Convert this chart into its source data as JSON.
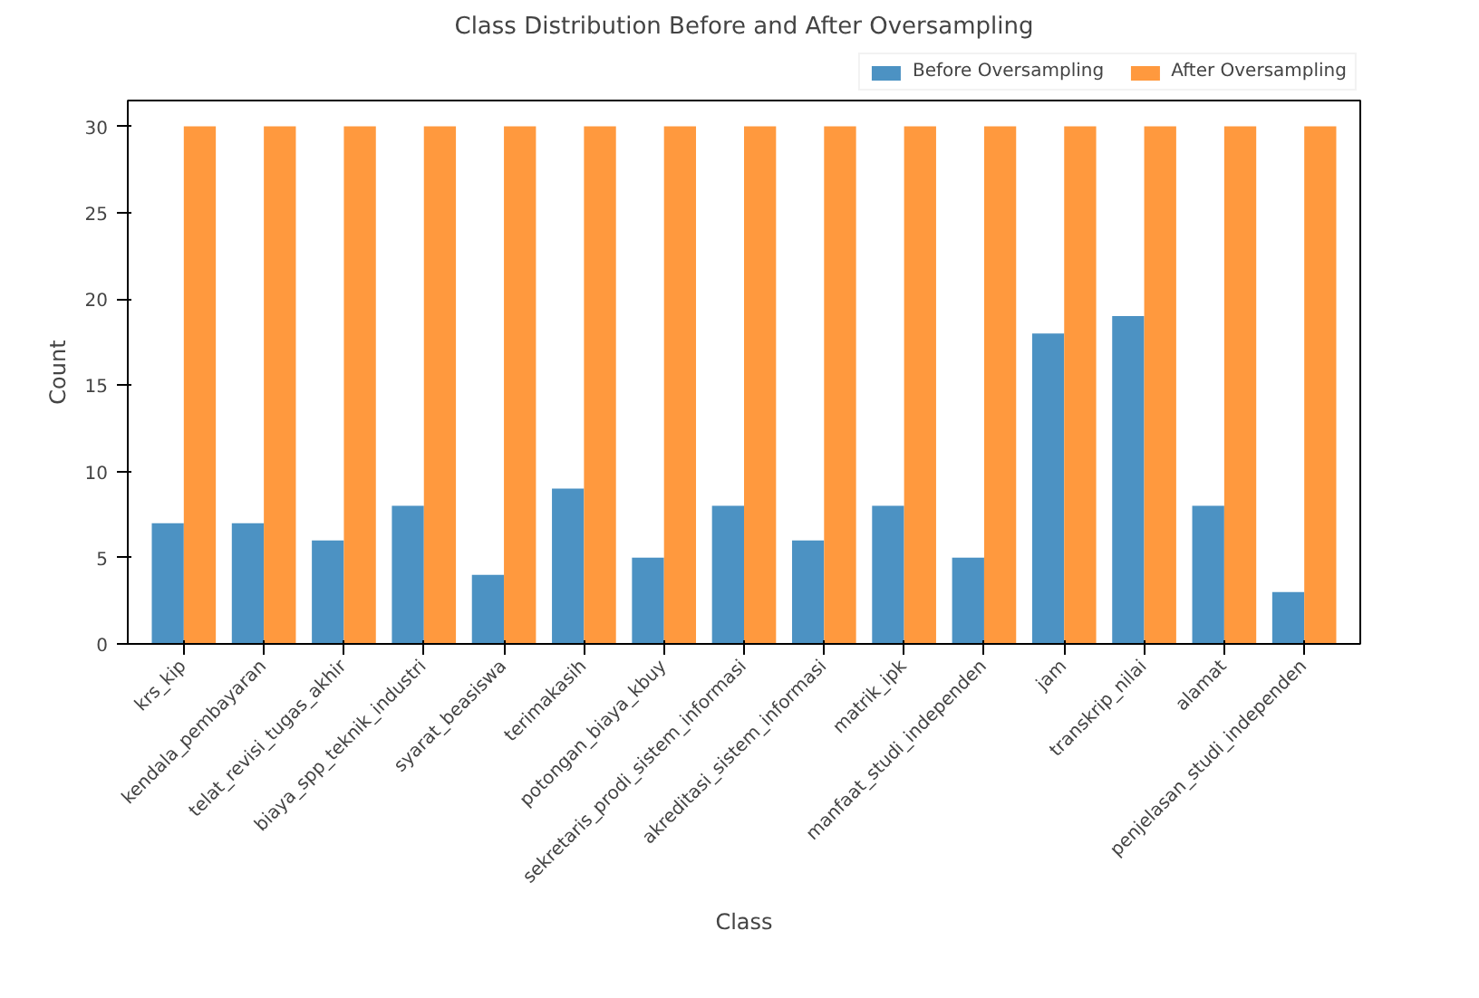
{
  "chart_data": {
    "type": "bar",
    "title": "Class Distribution Before and After Oversampling",
    "xlabel": "Class",
    "ylabel": "Count",
    "categories": [
      "krs_kip",
      "kendala_pembayaran",
      "telat_revisi_tugas_akhir",
      "biaya_spp_teknik_industri",
      "syarat_beasiswa",
      "terimakasih",
      "potongan_biaya_kbuy",
      "sekretaris_prodi_sistem_informasi",
      "akreditasi_sistem_informasi",
      "matrik_ipk",
      "manfaat_studi_independen",
      "jam",
      "transkrip_nilai",
      "alamat",
      "penjelasan_studi_independen"
    ],
    "series": [
      {
        "name": "Before Oversampling",
        "color": "#4c92c3",
        "values": [
          7,
          7,
          6,
          8,
          4,
          9,
          5,
          8,
          6,
          8,
          5,
          18,
          19,
          8,
          3
        ]
      },
      {
        "name": "After Oversampling",
        "color": "#ff993e",
        "values": [
          30,
          30,
          30,
          30,
          30,
          30,
          30,
          30,
          30,
          30,
          30,
          30,
          30,
          30,
          30
        ]
      }
    ],
    "ylim": [
      0,
      31.5
    ],
    "yticks": [
      0,
      5,
      10,
      15,
      20,
      25,
      30
    ],
    "legend": "top right",
    "grid": false
  }
}
